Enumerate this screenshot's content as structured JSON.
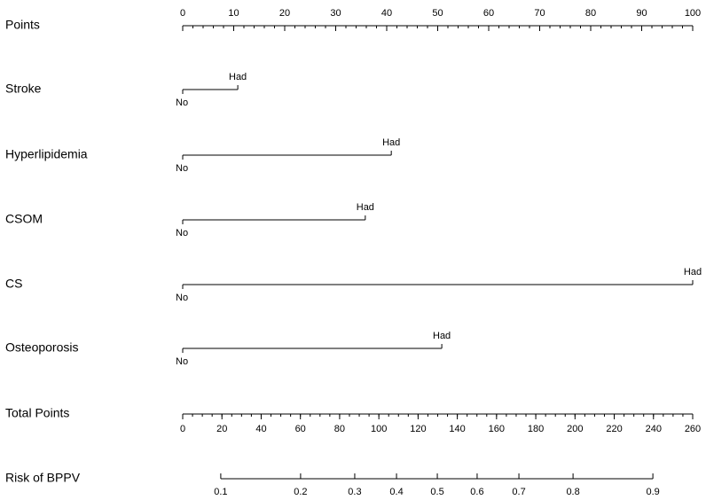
{
  "chart_data": {
    "type": "nomogram",
    "points_axis": {
      "label": "Points",
      "xlim": [
        0,
        100
      ],
      "xticks": [
        0,
        10,
        20,
        30,
        40,
        50,
        60,
        70,
        80,
        90,
        100
      ],
      "minor_step": 2
    },
    "variables": [
      {
        "name": "Stroke",
        "levels": [
          {
            "label": "No",
            "points": 0
          },
          {
            "label": "Had",
            "points": 10.8
          }
        ]
      },
      {
        "name": "Hyperlipidemia",
        "levels": [
          {
            "label": "No",
            "points": 0
          },
          {
            "label": "Had",
            "points": 40.9
          }
        ]
      },
      {
        "name": "CSOM",
        "levels": [
          {
            "label": "No",
            "points": 0
          },
          {
            "label": "Had",
            "points": 35.8
          }
        ]
      },
      {
        "name": "CS",
        "levels": [
          {
            "label": "No",
            "points": 0
          },
          {
            "label": "Had",
            "points": 100
          }
        ]
      },
      {
        "name": "Osteoporosis",
        "levels": [
          {
            "label": "No",
            "points": 0
          },
          {
            "label": "Had",
            "points": 50.8
          }
        ]
      }
    ],
    "total_axis": {
      "label": "Total Points",
      "xlim": [
        0,
        260
      ],
      "xticks": [
        0,
        20,
        40,
        60,
        80,
        100,
        120,
        140,
        160,
        180,
        200,
        220,
        240,
        260
      ],
      "minor_step": 5
    },
    "risk_axis": {
      "label": "Risk of BPPV",
      "ticks": [
        {
          "risk": 0.1,
          "total_points": 19.4
        },
        {
          "risk": 0.2,
          "total_points": 60.1
        },
        {
          "risk": 0.3,
          "total_points": 87.7
        },
        {
          "risk": 0.4,
          "total_points": 109
        },
        {
          "risk": 0.5,
          "total_points": 129.8
        },
        {
          "risk": 0.6,
          "total_points": 150.1
        },
        {
          "risk": 0.7,
          "total_points": 171.4
        },
        {
          "risk": 0.8,
          "total_points": 199
        },
        {
          "risk": 0.9,
          "total_points": 239.7
        }
      ]
    },
    "color": "#000000"
  }
}
